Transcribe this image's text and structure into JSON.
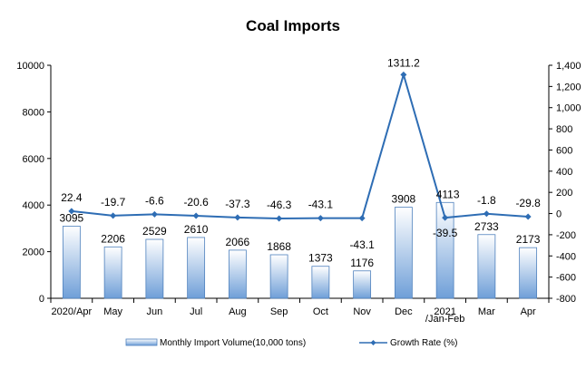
{
  "chart_data": {
    "type": "bar+line",
    "title": "Coal Imports",
    "categories": [
      "2020/Apr",
      "May",
      "Jun",
      "Jul",
      "Aug",
      "Sep",
      "Oct",
      "Nov",
      "Dec",
      "2021/Jan-Feb",
      "Mar",
      "Apr"
    ],
    "category_labels": [
      [
        "2020/Apr"
      ],
      [
        "May"
      ],
      [
        "Jun"
      ],
      [
        "Jul"
      ],
      [
        "Aug"
      ],
      [
        "Sep"
      ],
      [
        "Oct"
      ],
      [
        "Nov"
      ],
      [
        "Dec"
      ],
      [
        "2021",
        "/Jan-Feb"
      ],
      [
        "Mar"
      ],
      [
        "Apr"
      ]
    ],
    "series": [
      {
        "name": "Monthly Import Volume(10,000 tons)",
        "type": "bar",
        "axis": "left",
        "values": [
          3095,
          2206,
          2529,
          2610,
          2066,
          1868,
          1373,
          1176,
          3908,
          4113,
          2733,
          2173
        ],
        "labels": [
          "3095",
          "2206",
          "2529",
          "2610",
          "2066",
          "1868",
          "1373",
          "1176",
          "3908",
          "4113",
          "2733",
          "2173"
        ]
      },
      {
        "name": "Growth Rate (%)",
        "type": "line",
        "axis": "right",
        "values": [
          22.4,
          -19.7,
          -6.6,
          -20.6,
          -37.3,
          -46.3,
          -43.1,
          -43.1,
          1311.2,
          -39.5,
          -1.8,
          -29.8
        ],
        "labels": [
          "22.4",
          "-19.7",
          "-6.6",
          "-20.6",
          "-37.3",
          "-46.3",
          "-43.1",
          "-43.1",
          "1311.2",
          "-39.5",
          "-1.8",
          "-29.8"
        ]
      }
    ],
    "y_left": {
      "min": 0,
      "max": 10000,
      "ticks": [
        0,
        2000,
        4000,
        6000,
        8000,
        10000
      ],
      "tick_labels": [
        "0",
        "2000",
        "4000",
        "6000",
        "8000",
        "10000"
      ]
    },
    "y_right": {
      "min": -800,
      "max": 1400,
      "ticks": [
        -800,
        -600,
        -400,
        -200,
        0,
        200,
        400,
        600,
        800,
        1000,
        1200,
        1400
      ],
      "tick_labels": [
        "-800",
        "-600",
        "-400",
        "-200",
        "0",
        "200",
        "400",
        "600",
        "800",
        "1,000",
        "1,200",
        "1,400"
      ]
    },
    "grid": false,
    "legend_position": "bottom",
    "colors": {
      "bar_top": "#ffffff",
      "bar_bottom": "#6f9fd8",
      "bar_border": "#4f81bd",
      "line": "#2e6db4",
      "axis": "#000000"
    }
  }
}
